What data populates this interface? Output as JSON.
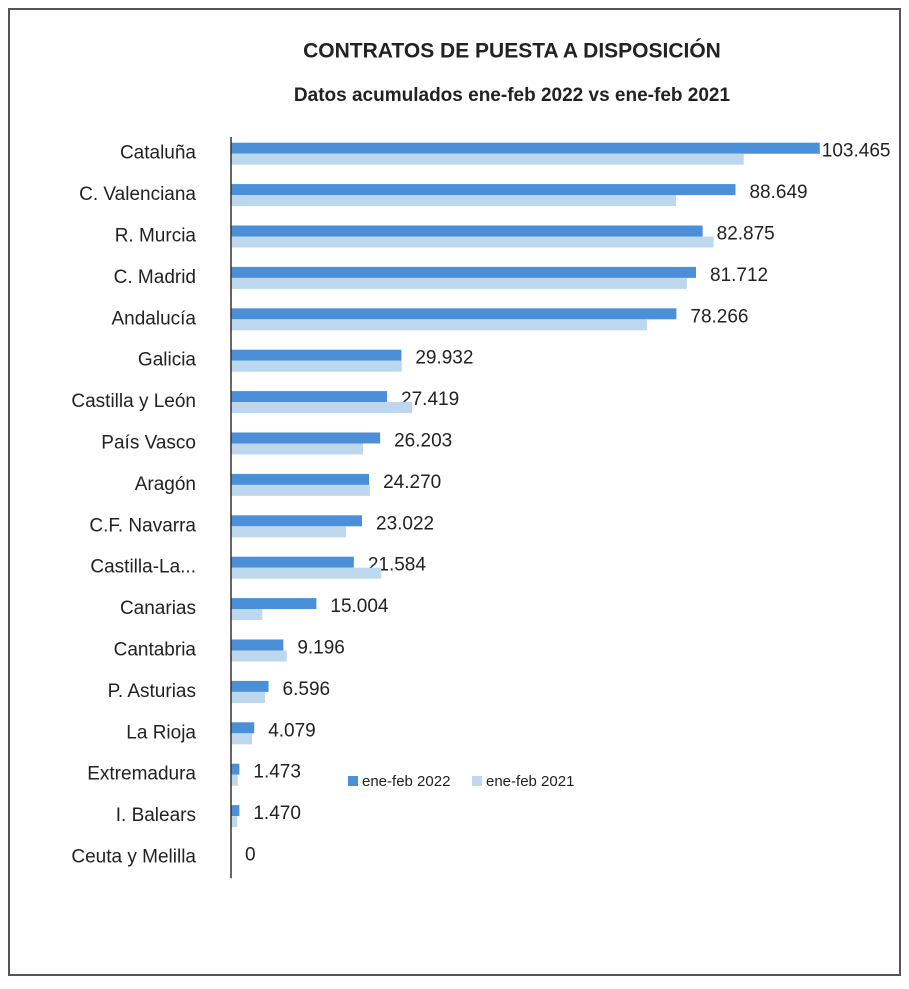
{
  "chart_data": {
    "type": "hbar",
    "title": "CONTRATOS DE PUESTA A DISPOSICIÓN",
    "subtitle": "Datos acumulados ene-feb 2022 vs ene-feb 2021",
    "categories": [
      "Cataluña",
      "C. Valenciana",
      "R. Murcia",
      "C. Madrid",
      "Andalucía",
      "Galicia",
      "Castilla y León",
      "País Vasco",
      "Aragón",
      "C.F. Navarra",
      "Castilla-La...",
      "Canarias",
      "Cantabria",
      "P. Asturias",
      "La Rioja",
      "Extremadura",
      "I. Balears",
      "Ceuta y Melilla"
    ],
    "series": [
      {
        "name": "ene-feb 2022",
        "color": "#4a8fd8",
        "values": [
          103465,
          88649,
          82875,
          81712,
          78266,
          29932,
          27419,
          26203,
          24270,
          23022,
          21584,
          15004,
          9196,
          6596,
          4079,
          1473,
          1470,
          0
        ],
        "value_labels": [
          "103.465",
          "88.649",
          "82.875",
          "81.712",
          "78.266",
          "29.932",
          "27.419",
          "26.203",
          "24.270",
          "23.022",
          "21.584",
          "15.004",
          "9.196",
          "6.596",
          "4.079",
          "1.473",
          "1.470",
          "0"
        ]
      },
      {
        "name": "ene-feb 2021",
        "color": "#bdd7ee",
        "values": [
          90100,
          78200,
          84800,
          80100,
          73100,
          30000,
          31800,
          23200,
          24400,
          20200,
          26400,
          5500,
          9800,
          6000,
          3700,
          1200,
          1100,
          0
        ]
      }
    ],
    "xlim": [
      0,
      110000
    ]
  }
}
